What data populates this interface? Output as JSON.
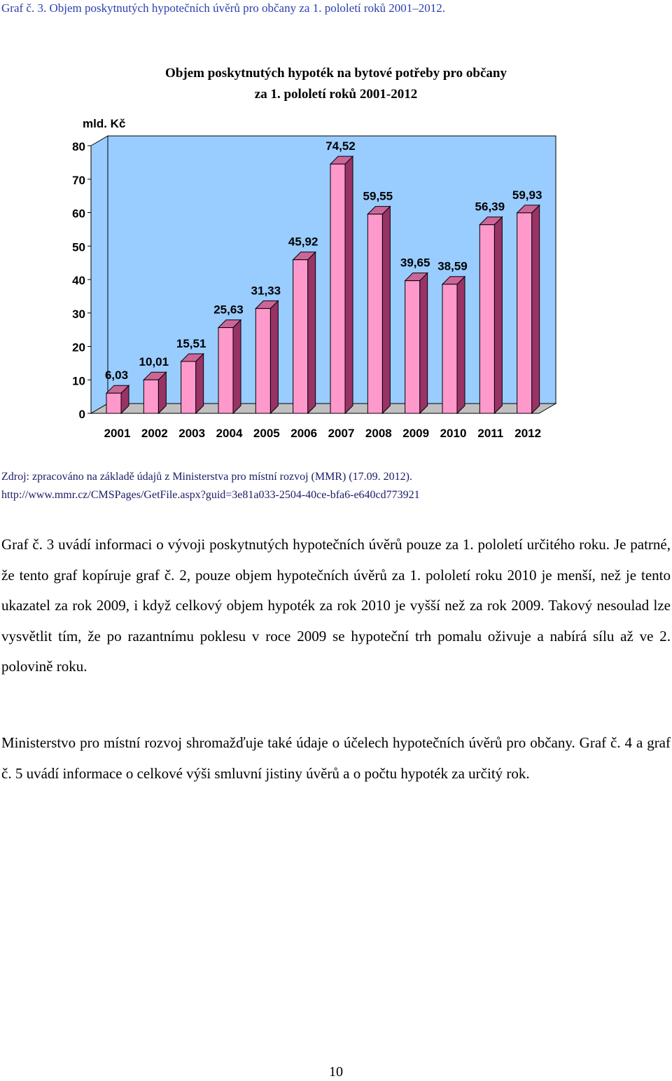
{
  "caption": "Graf č. 3. Objem poskytnutých hypotečních úvěrů pro občany za 1. pololetí roků 2001–2012.",
  "chart_data": {
    "type": "bar",
    "title": "Objem poskytnutých hypoték na bytové potřeby pro občany za 1. pololetí roků 2001-2012",
    "title_line1": "Objem poskytnutých hypoték na bytové potřeby pro občany",
    "title_line2": "za 1. pololetí roků 2001-2012",
    "ylabel": "mld. Kč",
    "xlabel": "",
    "ylim": [
      0,
      80
    ],
    "yticks": [
      0,
      10,
      20,
      30,
      40,
      50,
      60,
      70,
      80
    ],
    "categories": [
      "2001",
      "2002",
      "2003",
      "2004",
      "2005",
      "2006",
      "2007",
      "2008",
      "2009",
      "2010",
      "2011",
      "2012"
    ],
    "values": [
      6.03,
      10.01,
      15.51,
      25.63,
      31.33,
      45.92,
      74.52,
      59.55,
      39.65,
      38.59,
      56.39,
      59.93
    ],
    "data_labels": [
      "6,03",
      "10,01",
      "15,51",
      "25,63",
      "31,33",
      "45,92",
      "74,52",
      "59,55",
      "39,65",
      "38,59",
      "56,39",
      "59,93"
    ],
    "grid": false,
    "legend": "none",
    "style": "3d",
    "colors": {
      "bar_front": "#ff99cc",
      "bar_side": "#993366",
      "bar_top": "#cc6699",
      "plot_back": "#99ccff",
      "floor": "#c0c0c0"
    }
  },
  "source": {
    "line1": "Zdroj: zpracováno na základě údajů z Ministerstva pro místní rozvoj (MMR) (17.09. 2012).",
    "line2": "http://www.mmr.cz/CMSPages/GetFile.aspx?guid=3e81a033-2504-40ce-bfa6-e640cd773921"
  },
  "paragraphs": {
    "p1": "Graf č. 3 uvádí informaci o vývoji poskytnutých hypotečních úvěrů pouze za 1. pololetí určitého roku. Je patrné, že tento graf kopíruje graf č. 2, pouze objem hypotečních úvěrů za 1. pololetí roku 2010 je menší, než je tento ukazatel za rok 2009, i když celkový objem hypoték za rok 2010 je vyšší než za rok 2009. Takový nesoulad lze vysvětlit tím, že po razantnímu poklesu v roce 2009 se hypoteční trh pomalu oživuje a nabírá sílu až ve 2. polovině roku.",
    "p2": "Ministerstvo pro místní rozvoj shromažďuje také údaje o účelech hypotečních úvěrů pro občany. Graf č. 4 a graf č. 5 uvádí informace o celkové výši smluvní jistiny úvěrů a o počtu hypoték za určitý rok."
  },
  "page_number": "10"
}
